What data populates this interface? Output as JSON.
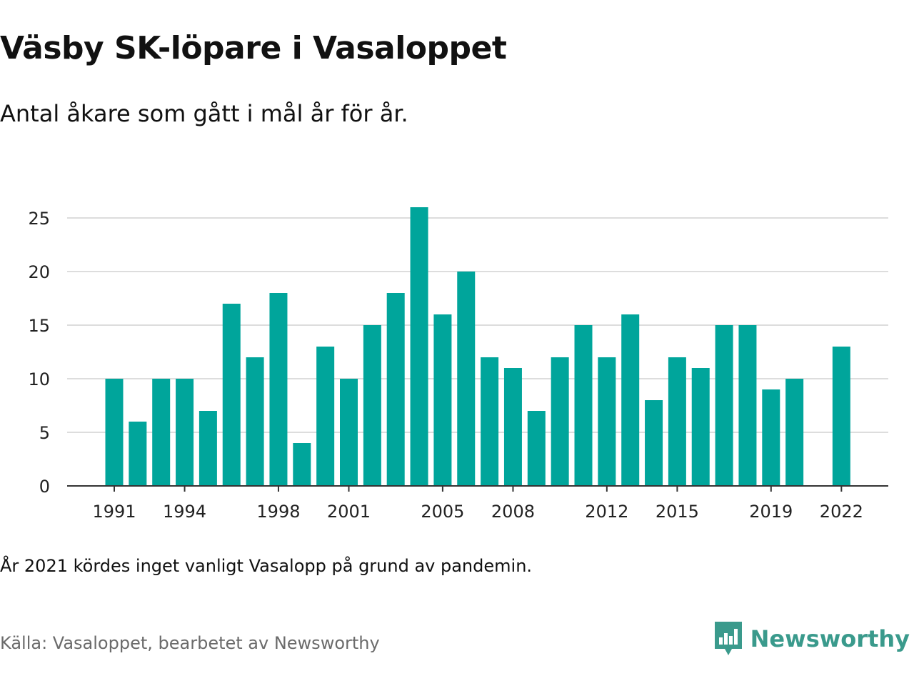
{
  "header": {
    "title": "Väsby SK-löpare i Vasaloppet",
    "subtitle": "Antal åkare som gått i mål år för år."
  },
  "footer": {
    "note": "År 2021 kördes inget vanligt Vasalopp på grund av pandemin.",
    "source": "Källa: Vasaloppet, bearbetet av Newsworthy",
    "brand": "Newsworthy",
    "brand_icon": "newsworthy-logo-icon",
    "brand_color": "#3a9a8c"
  },
  "chart_data": {
    "type": "bar",
    "title": "",
    "xlabel": "",
    "ylabel": "",
    "bar_color": "#00a59b",
    "grid": true,
    "ylim": [
      0,
      26
    ],
    "yticks": [
      0,
      5,
      10,
      15,
      20,
      25
    ],
    "xticks": [
      "1991",
      "1994",
      "1998",
      "2001",
      "2005",
      "2008",
      "2012",
      "2015",
      "2019",
      "2022"
    ],
    "categories": [
      "1991",
      "1992",
      "1993",
      "1994",
      "1995",
      "1996",
      "1997",
      "1998",
      "1999",
      "2000",
      "2001",
      "2002",
      "2003",
      "2004",
      "2005",
      "2006",
      "2007",
      "2008",
      "2009",
      "2010",
      "2011",
      "2012",
      "2013",
      "2014",
      "2015",
      "2016",
      "2017",
      "2018",
      "2019",
      "2020",
      "2021",
      "2022"
    ],
    "values": [
      10,
      6,
      10,
      10,
      7,
      17,
      12,
      18,
      4,
      13,
      10,
      15,
      18,
      26,
      16,
      20,
      12,
      11,
      7,
      12,
      15,
      12,
      16,
      8,
      12,
      11,
      15,
      15,
      9,
      10,
      null,
      13
    ]
  }
}
